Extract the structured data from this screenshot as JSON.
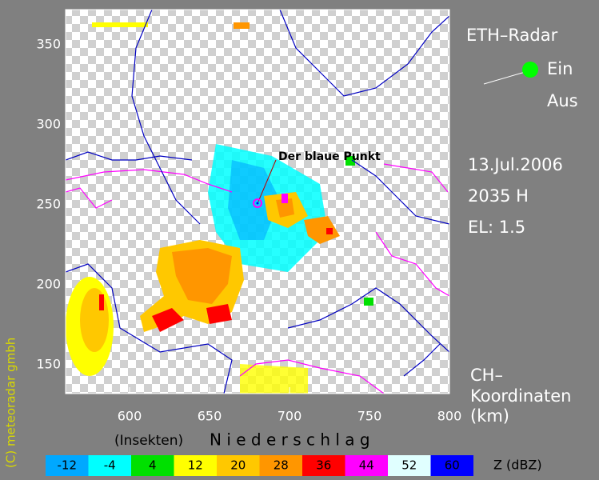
{
  "panel": {
    "title": "ETH–Radar",
    "on": "Ein",
    "off": "Aus",
    "date": "13.Jul.2006",
    "time": "2035 H",
    "elevation": "EL: 1.5",
    "coords_1": "CH–",
    "coords_2": "Koordinaten",
    "coords_3": "(km)"
  },
  "map": {
    "annotation": "Der blaue Punkt",
    "xlim": [
      560,
      800
    ],
    "xticks": [
      600,
      650,
      700,
      750,
      800
    ],
    "ylim": [
      132,
      372
    ],
    "yticks": [
      150,
      200,
      250,
      300,
      350
    ]
  },
  "footer": {
    "insects": "(Insekten)",
    "precip": "N i e d e r s c h l a g",
    "copyright": "(C) meteoradar gmbh"
  },
  "legend": {
    "unit": "Z  (dBZ)",
    "levels": [
      {
        "value": -12,
        "color": "#00a8ff"
      },
      {
        "value": -4,
        "color": "#00ffff"
      },
      {
        "value": 4,
        "color": "#00e000"
      },
      {
        "value": 12,
        "color": "#ffff00"
      },
      {
        "value": 20,
        "color": "#ffc800"
      },
      {
        "value": 28,
        "color": "#ff9600"
      },
      {
        "value": 36,
        "color": "#ff0000"
      },
      {
        "value": 44,
        "color": "#ff00ff"
      },
      {
        "value": 52,
        "color": "#e0ffff"
      },
      {
        "value": 60,
        "color": "#0000ff"
      }
    ]
  }
}
